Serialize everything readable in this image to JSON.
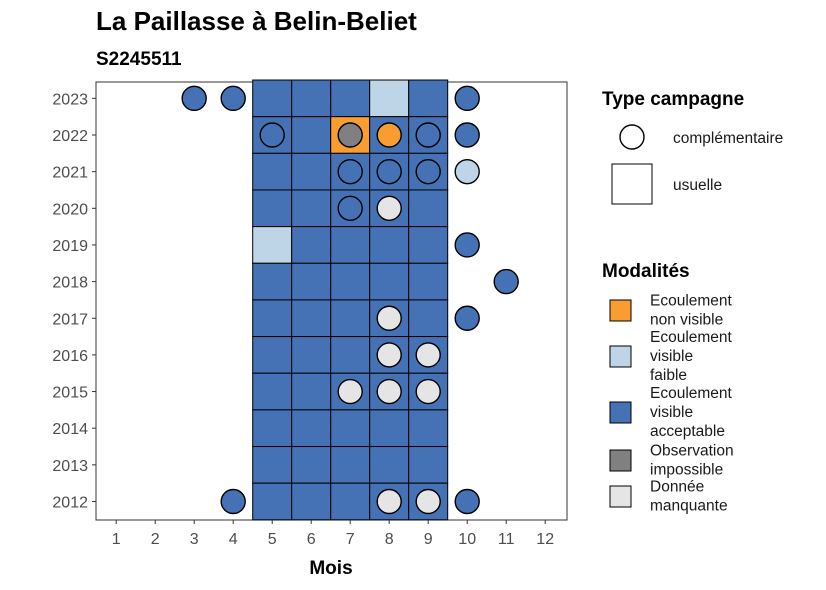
{
  "chart_data": {
    "type": "heatmap",
    "title": "La Paillasse à Belin-Beliet",
    "subtitle": "S2245511",
    "xlabel": "Mois",
    "ylabel": "",
    "x_ticks": [
      "1",
      "2",
      "3",
      "4",
      "5",
      "6",
      "7",
      "8",
      "9",
      "10",
      "11",
      "12"
    ],
    "y_ticks": [
      "2012",
      "2013",
      "2014",
      "2015",
      "2016",
      "2017",
      "2018",
      "2019",
      "2020",
      "2021",
      "2022",
      "2023"
    ],
    "colors": {
      "Ecoulement non visible": "#f99d31",
      "Ecoulement visible faible": "#bdd5e6",
      "Ecoulement visible acceptable": "#4472b5",
      "Observation impossible": "#808080",
      "Donnée manquante": "#e5e5e5"
    },
    "usuelle": [
      {
        "year": 2023,
        "month": 5,
        "m": "Ecoulement visible acceptable"
      },
      {
        "year": 2023,
        "month": 6,
        "m": "Ecoulement visible acceptable"
      },
      {
        "year": 2023,
        "month": 7,
        "m": "Ecoulement visible acceptable"
      },
      {
        "year": 2023,
        "month": 8,
        "m": "Ecoulement visible faible"
      },
      {
        "year": 2023,
        "month": 9,
        "m": "Ecoulement visible acceptable"
      },
      {
        "year": 2022,
        "month": 5,
        "m": "Ecoulement visible acceptable"
      },
      {
        "year": 2022,
        "month": 6,
        "m": "Ecoulement visible acceptable"
      },
      {
        "year": 2022,
        "month": 7,
        "m": "Ecoulement non visible"
      },
      {
        "year": 2022,
        "month": 8,
        "m": "Ecoulement visible acceptable"
      },
      {
        "year": 2022,
        "month": 9,
        "m": "Ecoulement visible acceptable"
      },
      {
        "year": 2021,
        "month": 5,
        "m": "Ecoulement visible acceptable"
      },
      {
        "year": 2021,
        "month": 6,
        "m": "Ecoulement visible acceptable"
      },
      {
        "year": 2021,
        "month": 7,
        "m": "Ecoulement visible acceptable"
      },
      {
        "year": 2021,
        "month": 8,
        "m": "Ecoulement visible acceptable"
      },
      {
        "year": 2021,
        "month": 9,
        "m": "Ecoulement visible acceptable"
      },
      {
        "year": 2020,
        "month": 5,
        "m": "Ecoulement visible acceptable"
      },
      {
        "year": 2020,
        "month": 6,
        "m": "Ecoulement visible acceptable"
      },
      {
        "year": 2020,
        "month": 7,
        "m": "Ecoulement visible acceptable"
      },
      {
        "year": 2020,
        "month": 8,
        "m": "Ecoulement visible acceptable"
      },
      {
        "year": 2020,
        "month": 9,
        "m": "Ecoulement visible acceptable"
      },
      {
        "year": 2019,
        "month": 5,
        "m": "Ecoulement visible faible"
      },
      {
        "year": 2019,
        "month": 6,
        "m": "Ecoulement visible acceptable"
      },
      {
        "year": 2019,
        "month": 7,
        "m": "Ecoulement visible acceptable"
      },
      {
        "year": 2019,
        "month": 8,
        "m": "Ecoulement visible acceptable"
      },
      {
        "year": 2019,
        "month": 9,
        "m": "Ecoulement visible acceptable"
      },
      {
        "year": 2018,
        "month": 5,
        "m": "Ecoulement visible acceptable"
      },
      {
        "year": 2018,
        "month": 6,
        "m": "Ecoulement visible acceptable"
      },
      {
        "year": 2018,
        "month": 7,
        "m": "Ecoulement visible acceptable"
      },
      {
        "year": 2018,
        "month": 8,
        "m": "Ecoulement visible acceptable"
      },
      {
        "year": 2018,
        "month": 9,
        "m": "Ecoulement visible acceptable"
      },
      {
        "year": 2017,
        "month": 5,
        "m": "Ecoulement visible acceptable"
      },
      {
        "year": 2017,
        "month": 6,
        "m": "Ecoulement visible acceptable"
      },
      {
        "year": 2017,
        "month": 7,
        "m": "Ecoulement visible acceptable"
      },
      {
        "year": 2017,
        "month": 8,
        "m": "Ecoulement visible acceptable"
      },
      {
        "year": 2017,
        "month": 9,
        "m": "Ecoulement visible acceptable"
      },
      {
        "year": 2016,
        "month": 5,
        "m": "Ecoulement visible acceptable"
      },
      {
        "year": 2016,
        "month": 6,
        "m": "Ecoulement visible acceptable"
      },
      {
        "year": 2016,
        "month": 7,
        "m": "Ecoulement visible acceptable"
      },
      {
        "year": 2016,
        "month": 8,
        "m": "Ecoulement visible acceptable"
      },
      {
        "year": 2016,
        "month": 9,
        "m": "Ecoulement visible acceptable"
      },
      {
        "year": 2015,
        "month": 5,
        "m": "Ecoulement visible acceptable"
      },
      {
        "year": 2015,
        "month": 6,
        "m": "Ecoulement visible acceptable"
      },
      {
        "year": 2015,
        "month": 7,
        "m": "Ecoulement visible acceptable"
      },
      {
        "year": 2015,
        "month": 8,
        "m": "Ecoulement visible acceptable"
      },
      {
        "year": 2015,
        "month": 9,
        "m": "Ecoulement visible acceptable"
      },
      {
        "year": 2014,
        "month": 5,
        "m": "Ecoulement visible acceptable"
      },
      {
        "year": 2014,
        "month": 6,
        "m": "Ecoulement visible acceptable"
      },
      {
        "year": 2014,
        "month": 7,
        "m": "Ecoulement visible acceptable"
      },
      {
        "year": 2014,
        "month": 8,
        "m": "Ecoulement visible acceptable"
      },
      {
        "year": 2014,
        "month": 9,
        "m": "Ecoulement visible acceptable"
      },
      {
        "year": 2013,
        "month": 5,
        "m": "Ecoulement visible acceptable"
      },
      {
        "year": 2013,
        "month": 6,
        "m": "Ecoulement visible acceptable"
      },
      {
        "year": 2013,
        "month": 7,
        "m": "Ecoulement visible acceptable"
      },
      {
        "year": 2013,
        "month": 8,
        "m": "Ecoulement visible acceptable"
      },
      {
        "year": 2013,
        "month": 9,
        "m": "Ecoulement visible acceptable"
      },
      {
        "year": 2012,
        "month": 5,
        "m": "Ecoulement visible acceptable"
      },
      {
        "year": 2012,
        "month": 6,
        "m": "Ecoulement visible acceptable"
      },
      {
        "year": 2012,
        "month": 7,
        "m": "Ecoulement visible acceptable"
      },
      {
        "year": 2012,
        "month": 8,
        "m": "Ecoulement visible acceptable"
      },
      {
        "year": 2012,
        "month": 9,
        "m": "Ecoulement visible acceptable"
      }
    ],
    "complementaire": [
      {
        "year": 2023,
        "month": 3,
        "m": "Ecoulement visible acceptable"
      },
      {
        "year": 2023,
        "month": 4,
        "m": "Ecoulement visible acceptable"
      },
      {
        "year": 2023,
        "month": 10,
        "m": "Ecoulement visible acceptable"
      },
      {
        "year": 2022,
        "month": 5,
        "m": "Ecoulement visible acceptable"
      },
      {
        "year": 2022,
        "month": 7,
        "m": "Observation impossible"
      },
      {
        "year": 2022,
        "month": 8,
        "m": "Ecoulement non visible"
      },
      {
        "year": 2022,
        "month": 9,
        "m": "Ecoulement visible acceptable"
      },
      {
        "year": 2022,
        "month": 10,
        "m": "Ecoulement visible acceptable"
      },
      {
        "year": 2021,
        "month": 7,
        "m": "Ecoulement visible acceptable"
      },
      {
        "year": 2021,
        "month": 8,
        "m": "Ecoulement visible acceptable"
      },
      {
        "year": 2021,
        "month": 9,
        "m": "Ecoulement visible acceptable"
      },
      {
        "year": 2021,
        "month": 10,
        "m": "Ecoulement visible faible"
      },
      {
        "year": 2020,
        "month": 7,
        "m": "Ecoulement visible acceptable"
      },
      {
        "year": 2020,
        "month": 8,
        "m": "Donnée manquante"
      },
      {
        "year": 2019,
        "month": 10,
        "m": "Ecoulement visible acceptable"
      },
      {
        "year": 2018,
        "month": 11,
        "m": "Ecoulement visible acceptable"
      },
      {
        "year": 2017,
        "month": 8,
        "m": "Donnée manquante"
      },
      {
        "year": 2017,
        "month": 10,
        "m": "Ecoulement visible acceptable"
      },
      {
        "year": 2016,
        "month": 8,
        "m": "Donnée manquante"
      },
      {
        "year": 2016,
        "month": 9,
        "m": "Donnée manquante"
      },
      {
        "year": 2015,
        "month": 7,
        "m": "Donnée manquante"
      },
      {
        "year": 2015,
        "month": 8,
        "m": "Donnée manquante"
      },
      {
        "year": 2015,
        "month": 9,
        "m": "Donnée manquante"
      },
      {
        "year": 2012,
        "month": 4,
        "m": "Ecoulement visible acceptable"
      },
      {
        "year": 2012,
        "month": 8,
        "m": "Donnée manquante"
      },
      {
        "year": 2012,
        "month": 9,
        "m": "Donnée manquante"
      },
      {
        "year": 2012,
        "month": 10,
        "m": "Ecoulement visible acceptable"
      }
    ],
    "legend": {
      "type_title": "Type campagne",
      "type_items": [
        "complémentaire",
        "usuelle"
      ],
      "mod_title": "Modalités",
      "mod_items": [
        {
          "key": "Ecoulement non visible",
          "lines": [
            "Ecoulement",
            "non visible"
          ]
        },
        {
          "key": "Ecoulement visible faible",
          "lines": [
            "Ecoulement",
            "visible",
            "faible"
          ]
        },
        {
          "key": "Ecoulement visible acceptable",
          "lines": [
            "Ecoulement",
            "visible",
            "acceptable"
          ]
        },
        {
          "key": "Observation impossible",
          "lines": [
            "Observation",
            "impossible"
          ]
        },
        {
          "key": "Donnée manquante",
          "lines": [
            "Donnée",
            "manquante"
          ]
        }
      ]
    }
  }
}
